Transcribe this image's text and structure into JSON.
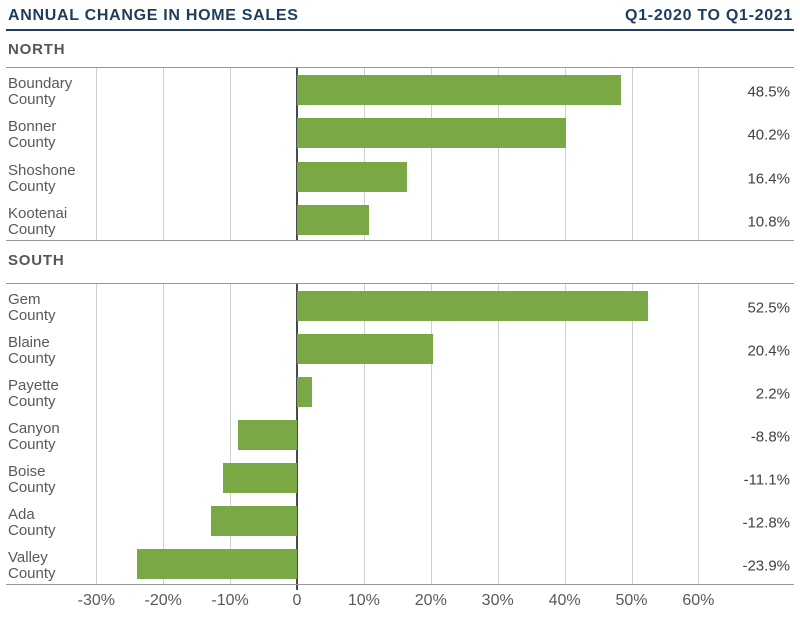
{
  "header": {
    "title": "ANNUAL CHANGE IN HOME SALES",
    "range": "Q1-2020 TO Q1-2021"
  },
  "colors": {
    "navy": "#1d3d5d",
    "bar_green": "#7aa845",
    "grid": "#cdcfd0",
    "chart_border": "#98999b",
    "zero_line": "#48494b",
    "text_gray": "#58595b",
    "value_text": "#414042",
    "section_text": "#545659"
  },
  "chart_data": [
    {
      "type": "bar",
      "orientation": "horizontal",
      "section": "NORTH",
      "categories": [
        "Boundary County",
        "Bonner County",
        "Shoshone County",
        "Kootenai County"
      ],
      "values": [
        48.5,
        40.2,
        16.4,
        10.8
      ],
      "value_labels": [
        "48.5%",
        "40.2%",
        "16.4%",
        "10.8%"
      ]
    },
    {
      "type": "bar",
      "orientation": "horizontal",
      "section": "SOUTH",
      "categories": [
        "Gem County",
        "Blaine County",
        "Payette County",
        "Canyon County",
        "Boise County",
        "Ada County",
        "Valley County"
      ],
      "values": [
        52.5,
        20.4,
        2.2,
        -8.8,
        -11.1,
        -12.8,
        -23.9
      ],
      "value_labels": [
        "52.5%",
        "20.4%",
        "2.2%",
        "-8.8%",
        "-11.1%",
        "-12.8%",
        "-23.9%"
      ]
    }
  ],
  "axis": {
    "ticks": [
      -30,
      -20,
      -10,
      0,
      10,
      20,
      30,
      40,
      50,
      60
    ],
    "tick_labels": [
      "-30%",
      "-20%",
      "-10%",
      "0",
      "10%",
      "20%",
      "30%",
      "40%",
      "50%",
      "60%"
    ],
    "xlim": [
      -30,
      60
    ],
    "grid": true,
    "legend": "none"
  }
}
